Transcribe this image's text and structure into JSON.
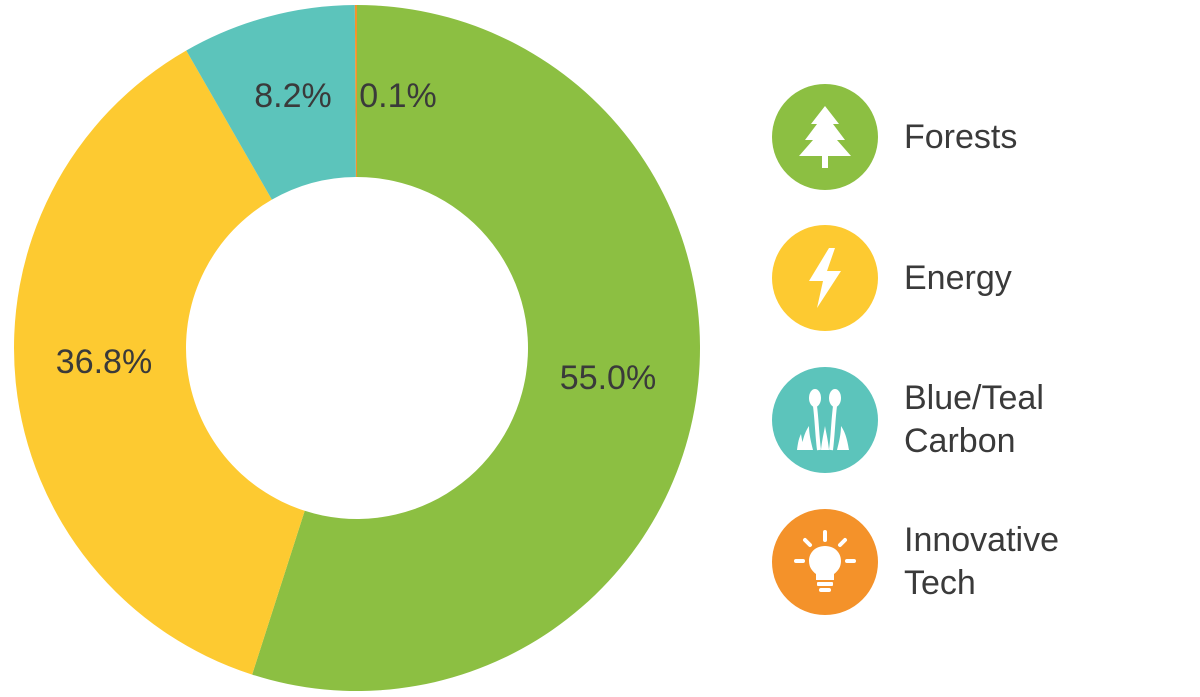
{
  "chart_data": {
    "type": "pie",
    "donut": true,
    "title": "",
    "categories": [
      "Forests",
      "Energy",
      "Blue/Teal\nCarbon",
      "Innovative\nTech"
    ],
    "values": [
      55.0,
      36.8,
      8.2,
      0.1
    ],
    "data_labels": [
      "55.0%",
      "36.8%",
      "8.2%",
      "0.1%"
    ],
    "colors": [
      "#8cbf42",
      "#fdca31",
      "#5cc4bb",
      "#f4922a"
    ],
    "legend_placement": "right",
    "legend_icons": [
      "tree-icon",
      "lightning-bolt-icon",
      "wetland-plant-icon",
      "lightbulb-icon"
    ],
    "start_angle": "top",
    "direction": "clockwise"
  }
}
